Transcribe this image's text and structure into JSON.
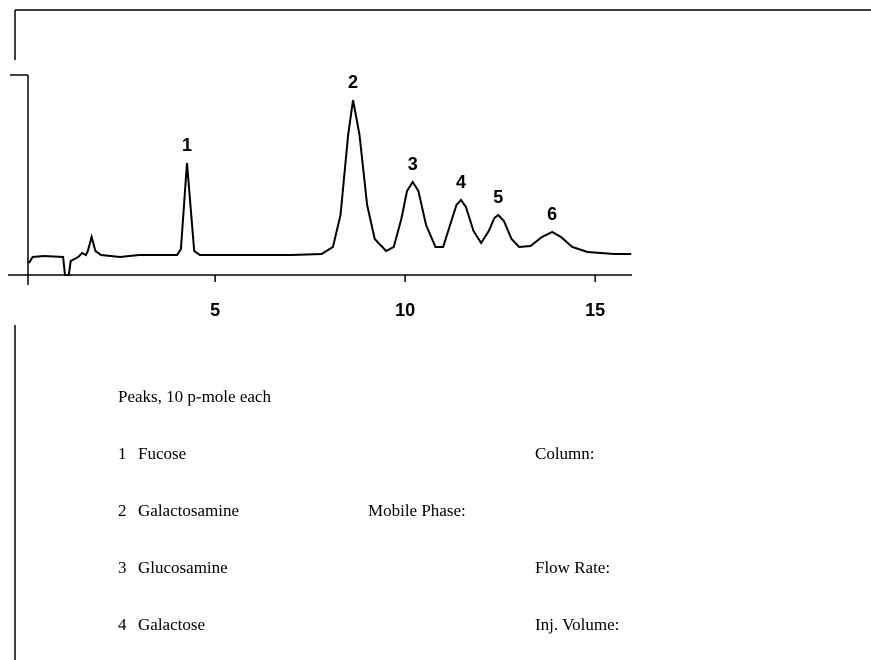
{
  "chart_data": {
    "type": "line",
    "xlim": [
      -0.45,
      15.97
    ],
    "xticks": [
      5,
      10,
      15
    ],
    "ylim": [
      0,
      100
    ],
    "series": [
      {
        "color": "#000000",
        "x": [
          0.1,
          0.2,
          0.5,
          1.0,
          1.05,
          1.15,
          1.2,
          1.4,
          1.5,
          1.6,
          1.65,
          1.75,
          1.85,
          2.0,
          2.5,
          3,
          3.5,
          4.0,
          4.1,
          4.2,
          4.26,
          4.35,
          4.45,
          4.6,
          5,
          6,
          7,
          7.8,
          8.1,
          8.3,
          8.5,
          8.63,
          8.8,
          9.0,
          9.2,
          9.5,
          9.7,
          9.9,
          10.05,
          10.2,
          10.35,
          10.55,
          10.8,
          11.0,
          11.2,
          11.35,
          11.47,
          11.6,
          11.8,
          12.0,
          12.2,
          12.35,
          12.45,
          12.6,
          12.8,
          13.0,
          13.3,
          13.6,
          13.87,
          14.1,
          14.4,
          14.8,
          15.5,
          15.95
        ],
        "values": [
          6,
          9,
          9.5,
          9,
          0,
          0,
          7,
          9,
          11,
          10,
          12,
          19,
          12,
          10,
          9,
          10,
          10,
          10,
          13,
          40,
          56,
          35,
          12,
          10,
          10,
          10,
          10,
          10.5,
          14,
          30,
          70,
          87.5,
          70,
          35,
          18,
          12,
          14,
          28,
          42,
          46.5,
          42,
          25,
          14,
          14,
          26,
          35,
          37.5,
          34,
          22,
          16,
          22,
          28.5,
          30,
          27,
          18,
          14,
          14.5,
          19,
          21.5,
          19,
          14,
          11.5,
          10.5,
          10.5
        ]
      }
    ],
    "annotations": [
      {
        "text": "1",
        "x": 4.26,
        "y": 56
      },
      {
        "text": "2",
        "x": 8.63,
        "y": 87.5
      },
      {
        "text": "3",
        "x": 10.2,
        "y": 46.5
      },
      {
        "text": "4",
        "x": 11.47,
        "y": 37.5
      },
      {
        "text": "5",
        "x": 12.45,
        "y": 30
      },
      {
        "text": "6",
        "x": 13.87,
        "y": 21.5
      }
    ],
    "peaks_heading": "Peaks, 10 p-mole each",
    "peaks": [
      {
        "number": "1",
        "name": "Fucose"
      },
      {
        "number": "2",
        "name": "Galactosamine"
      },
      {
        "number": "3",
        "name": "Glucosamine"
      },
      {
        "number": "4",
        "name": "Galactose"
      }
    ],
    "conditions": [
      "Column:",
      "Mobile Phase:",
      "Flow Rate:",
      "Inj. Volume:"
    ]
  }
}
